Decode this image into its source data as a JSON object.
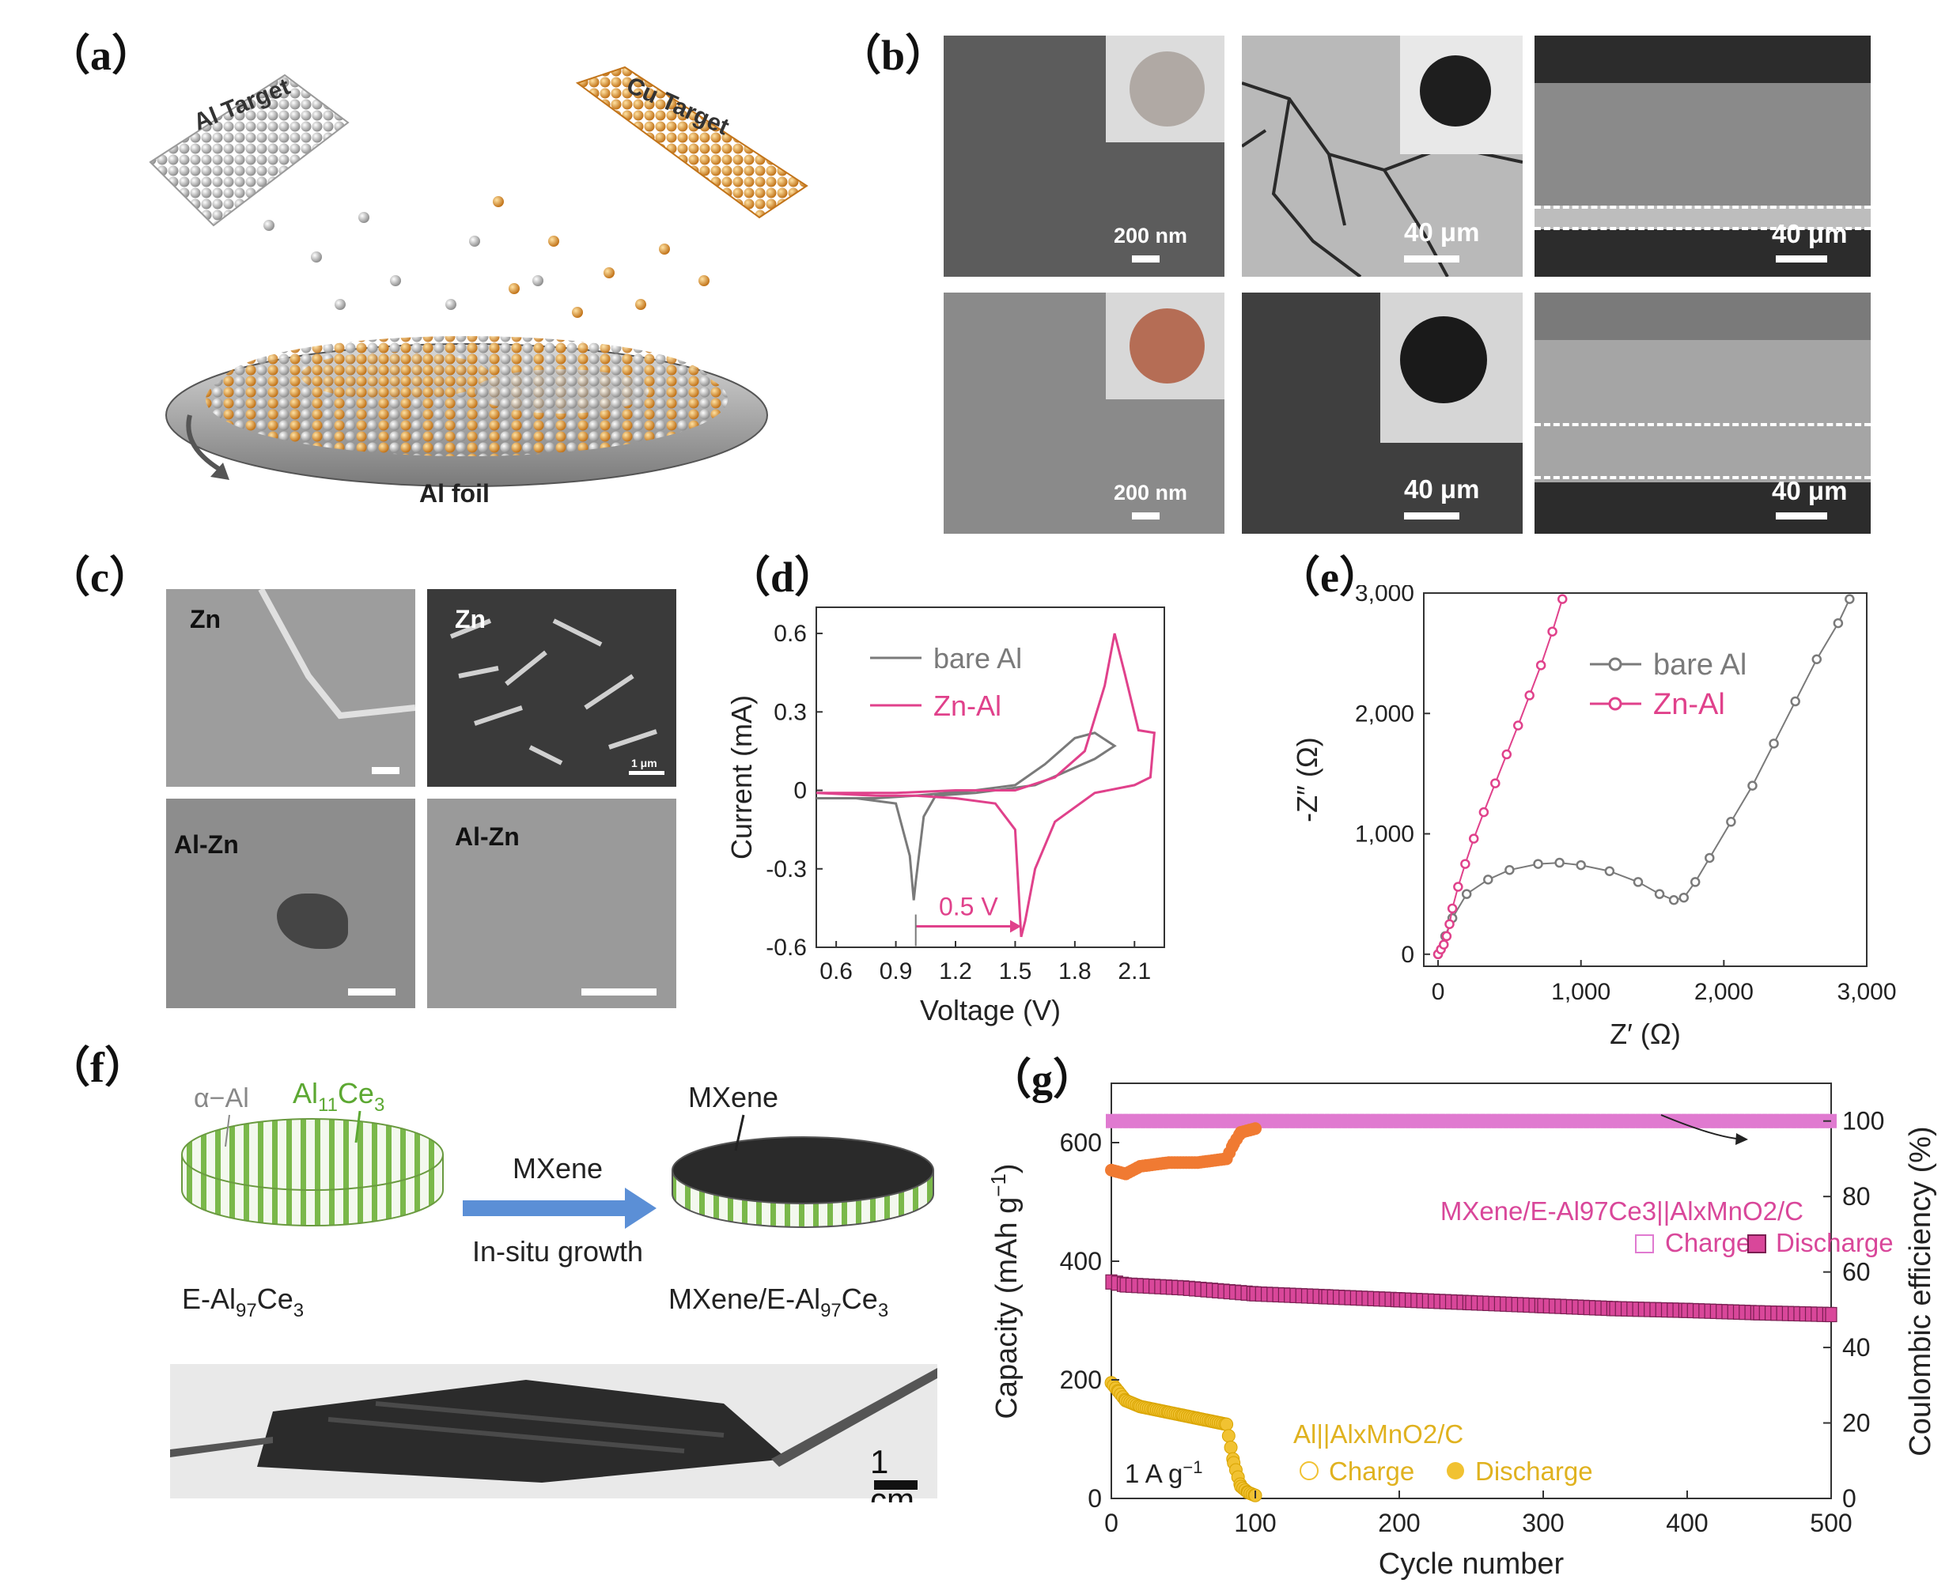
{
  "panels": {
    "a": "（a）",
    "b": "（b）",
    "c": "（c）",
    "d": "（d）",
    "e": "（e）",
    "f": "（f）",
    "g": "（g）"
  },
  "panel_a": {
    "al_target": "Al Target",
    "cu_target": "Cu Target",
    "al_foil": "Al foil",
    "colors": {
      "al": "#c8c8c8",
      "cu": "#e39a2b"
    }
  },
  "panel_b": {
    "scale_200nm": "200 nm",
    "scale_40um": "40 μm"
  },
  "panel_c": {
    "zn": "Zn",
    "al_zn": "Al-Zn",
    "scale_1um": "1 μm"
  },
  "panel_d": {
    "xlabel": "Voltage (V)",
    "ylabel": "Current (mA)",
    "xticks": [
      "0.6",
      "0.9",
      "1.2",
      "1.5",
      "1.8",
      "2.1"
    ],
    "yticks": [
      "0.6",
      "0.3",
      "0",
      "-0.3",
      "-0.6"
    ],
    "annotation": "0.5 V",
    "legend": [
      "bare Al",
      "Zn-Al"
    ]
  },
  "panel_e": {
    "xlabel": "Z′ (Ω)",
    "ylabel": "-Z″ (Ω)",
    "xticks": [
      "0",
      "1,000",
      "2,000",
      "3,000"
    ],
    "yticks": [
      "3,000",
      "2,000",
      "1,000",
      "0"
    ],
    "legend": [
      "bare Al",
      "Zn-Al"
    ]
  },
  "panel_f": {
    "alpha_al": "α−Al",
    "al11ce3_main": "Al",
    "al11ce3_sub1": "11",
    "al11ce3_ce": "Ce",
    "al11ce3_sub2": "3",
    "mxene_top": "MXene",
    "arrow_top": "MXene",
    "arrow_bottom": "In-situ growth",
    "left_main": "E-Al",
    "left_sub1": "97",
    "left_ce": "Ce",
    "left_sub2": "3",
    "right_main": "MXene/E-Al",
    "right_sub1": "97",
    "right_ce": "Ce",
    "right_sub2": "3",
    "scale": "1 cm"
  },
  "panel_g": {
    "xlabel": "Cycle number",
    "ylabel_left": "Capacity (mAh g",
    "ylabel_left_sup": "−1",
    "ylabel_left_end": ")",
    "ylabel_right": "Coulombic efficiency (%)",
    "xticks": [
      "0",
      "100",
      "200",
      "300",
      "400",
      "500"
    ],
    "yticks_left": [
      "0",
      "200",
      "400",
      "600"
    ],
    "yticks_right": [
      "0",
      "20",
      "40",
      "60",
      "80",
      "100"
    ],
    "mxene_series": "MXene/E-Al97Ce3||AlxMnO2/C",
    "al_series": "Al||AlxMnO2/C",
    "charge": "Charge",
    "discharge": "Discharge",
    "rate": "1 A g",
    "rate_sup": "−1",
    "colors": {
      "mxene": "#d9479a",
      "ce_mxene": "#e07ad0",
      "al": "#f1c232",
      "ce_al": "#f07a32"
    }
  },
  "chart_data": [
    {
      "type": "line",
      "xlabel": "Voltage (V)",
      "ylabel": "Current (mA)",
      "xlim": [
        0.5,
        2.25
      ],
      "ylim": [
        -0.6,
        0.7
      ],
      "series": [
        {
          "name": "bare Al",
          "x": [
            0.5,
            0.8,
            1.0,
            1.3,
            1.5,
            1.65,
            1.8,
            1.9,
            2.0,
            1.9,
            1.6,
            1.3,
            1.1,
            1.04,
            1.0,
            0.99,
            0.97,
            0.9,
            0.7,
            0.5
          ],
          "y": [
            -0.03,
            -0.03,
            -0.02,
            0.0,
            0.02,
            0.1,
            0.2,
            0.22,
            0.17,
            0.12,
            0.02,
            -0.01,
            -0.02,
            -0.1,
            -0.35,
            -0.42,
            -0.25,
            -0.05,
            -0.03,
            -0.03
          ]
        },
        {
          "name": "Zn-Al",
          "x": [
            0.5,
            0.9,
            1.2,
            1.5,
            1.7,
            1.85,
            1.95,
            2.0,
            2.05,
            2.12,
            2.2,
            2.18,
            2.1,
            1.9,
            1.7,
            1.6,
            1.55,
            1.53,
            1.5,
            1.4,
            1.2,
            1.0,
            0.8,
            0.5
          ],
          "y": [
            -0.01,
            -0.01,
            0.0,
            0.0,
            0.05,
            0.15,
            0.4,
            0.6,
            0.45,
            0.23,
            0.22,
            0.05,
            0.02,
            -0.01,
            -0.12,
            -0.3,
            -0.5,
            -0.56,
            -0.15,
            -0.05,
            -0.03,
            -0.02,
            -0.02,
            -0.01
          ]
        }
      ],
      "annotation": "0.5 V"
    },
    {
      "type": "scatter",
      "xlabel": "Z′ (Ω)",
      "ylabel": "-Z″ (Ω)",
      "xlim": [
        -100,
        3000
      ],
      "ylim": [
        -100,
        3000
      ],
      "series": [
        {
          "name": "bare Al",
          "x": [
            0,
            50,
            100,
            200,
            350,
            500,
            700,
            850,
            1000,
            1200,
            1400,
            1550,
            1650,
            1720,
            1800,
            1900,
            2050,
            2200,
            2350,
            2500,
            2650,
            2800,
            2880
          ],
          "y": [
            0,
            150,
            300,
            500,
            620,
            700,
            750,
            760,
            740,
            690,
            600,
            500,
            450,
            470,
            600,
            800,
            1100,
            1400,
            1750,
            2100,
            2450,
            2750,
            2950
          ]
        },
        {
          "name": "Zn-Al",
          "x": [
            0,
            20,
            40,
            60,
            80,
            100,
            140,
            190,
            250,
            320,
            400,
            480,
            560,
            640,
            720,
            800,
            870
          ],
          "y": [
            0,
            40,
            80,
            150,
            250,
            380,
            560,
            750,
            960,
            1180,
            1420,
            1660,
            1900,
            2150,
            2400,
            2680,
            2950
          ]
        }
      ]
    },
    {
      "type": "scatter",
      "xlabel": "Cycle number",
      "ylabel": "Capacity (mAh g−1)",
      "ylabel_right": "Coulombic efficiency (%)",
      "xlim": [
        0,
        500
      ],
      "ylim": [
        0,
        700
      ],
      "ylim_right": [
        0,
        110
      ],
      "series": [
        {
          "name": "MXene/E-Al97Ce3||AlxMnO2/C",
          "axis": "left",
          "x": [
            0,
            10,
            50,
            100,
            150,
            200,
            250,
            300,
            350,
            400,
            450,
            500
          ],
          "y": [
            365,
            360,
            355,
            345,
            340,
            335,
            330,
            325,
            320,
            317,
            313,
            310
          ]
        },
        {
          "name": "MXene/E-Al97Ce3||AlxMnO2/C CE",
          "axis": "right",
          "x": [
            0,
            100,
            200,
            300,
            400,
            500
          ],
          "y": [
            100,
            100,
            100,
            100,
            100,
            100
          ]
        },
        {
          "name": "Al||AlxMnO2/C",
          "axis": "left",
          "x": [
            0,
            5,
            10,
            20,
            30,
            40,
            50,
            60,
            70,
            80,
            85,
            90,
            95,
            100
          ],
          "y": [
            195,
            180,
            165,
            155,
            150,
            145,
            140,
            135,
            130,
            125,
            60,
            20,
            10,
            5
          ]
        },
        {
          "name": "Al||AlxMnO2/C CE",
          "axis": "right",
          "x": [
            0,
            10,
            20,
            40,
            60,
            80,
            85,
            90,
            100
          ],
          "y": [
            87,
            86,
            88,
            89,
            89,
            90,
            94,
            97,
            98
          ]
        }
      ]
    }
  ]
}
